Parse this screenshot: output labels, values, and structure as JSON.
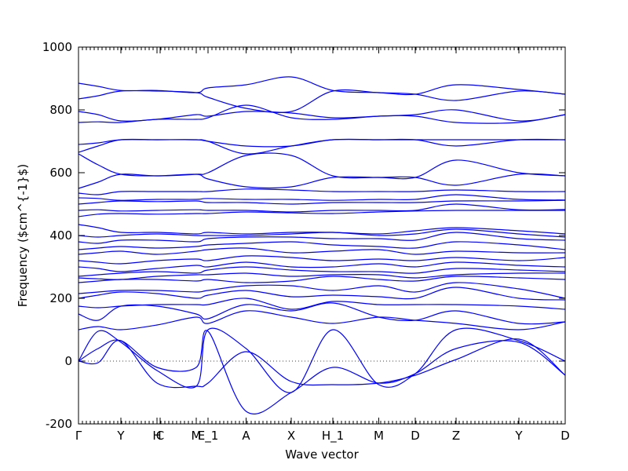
{
  "chart_data": {
    "type": "line",
    "xlabel": "Wave vector",
    "ylabel": "Frequency ($cm^{-1}$)",
    "ylim": [
      -200,
      1000
    ],
    "yticks": [
      -200,
      0,
      200,
      400,
      600,
      800,
      1000
    ],
    "xlim": [
      0,
      12.4
    ],
    "grid": false,
    "zero_line": "dotted",
    "color": "#0000ff",
    "high_symmetry_points": [
      {
        "label": "Γ",
        "x": 0.0
      },
      {
        "label": "Y",
        "x": 1.08
      },
      {
        "label": "H",
        "x": 2.0
      },
      {
        "label": "C",
        "x": 2.08
      },
      {
        "label": "M",
        "x": 3.0
      },
      {
        "label": "E_1",
        "x": 3.3
      },
      {
        "label": "A",
        "x": 4.27
      },
      {
        "label": "X",
        "x": 5.42
      },
      {
        "label": "H_1",
        "x": 6.48
      },
      {
        "label": "M",
        "x": 7.65
      },
      {
        "label": "D",
        "x": 8.58
      },
      {
        "label": "Z",
        "x": 9.62
      },
      {
        "label": "Y",
        "x": 11.22
      },
      {
        "label": "D",
        "x": 12.4
      }
    ],
    "series": [
      {
        "x": [
          0,
          0.5,
          1.08,
          2.0,
          3.0,
          3.3,
          4.27,
          5.42,
          6.48,
          7.65,
          8.58,
          9.62,
          11.22,
          12.4
        ],
        "values": [
          0,
          -5,
          65,
          -70,
          -80,
          -70,
          30,
          -65,
          -75,
          -70,
          -45,
          5,
          70,
          -45
        ]
      },
      {
        "x": [
          0,
          0.5,
          1.08,
          2.0,
          3.0,
          3.3,
          4.27,
          5.42,
          6.48,
          7.65,
          8.58,
          9.62,
          11.22,
          12.4
        ],
        "values": [
          0,
          40,
          65,
          -20,
          -20,
          95,
          -160,
          -100,
          -20,
          -70,
          -40,
          40,
          60,
          -45
        ]
      },
      {
        "x": [
          0,
          0.5,
          1.08,
          2.0,
          3.0,
          3.3,
          4.27,
          5.42,
          6.48,
          7.65,
          8.58,
          9.62,
          11.22,
          12.4
        ],
        "values": [
          0,
          95,
          60,
          -30,
          -80,
          100,
          40,
          -100,
          100,
          -75,
          -40,
          100,
          65,
          0
        ]
      },
      {
        "x": [
          0,
          0.5,
          1.08,
          2.0,
          3.0,
          3.3,
          4.27,
          5.42,
          6.48,
          7.65,
          8.58,
          9.62,
          11.22,
          12.4
        ],
        "values": [
          100,
          110,
          100,
          115,
          140,
          120,
          160,
          140,
          120,
          140,
          130,
          120,
          100,
          125
        ]
      },
      {
        "x": [
          0,
          0.5,
          1.08,
          2.0,
          3.0,
          3.3,
          4.27,
          5.42,
          6.48,
          7.65,
          8.58,
          9.62,
          11.22,
          12.4
        ],
        "values": [
          150,
          130,
          175,
          175,
          150,
          135,
          180,
          160,
          185,
          140,
          130,
          160,
          120,
          125
        ]
      },
      {
        "x": [
          0,
          0.5,
          1.08,
          2.0,
          3.0,
          3.3,
          4.27,
          5.42,
          6.48,
          7.65,
          8.58,
          9.62,
          11.22,
          12.4
        ],
        "values": [
          175,
          170,
          175,
          180,
          180,
          180,
          200,
          165,
          190,
          180,
          180,
          180,
          175,
          165
        ]
      },
      {
        "x": [
          0,
          0.5,
          1.08,
          2.0,
          3.0,
          3.3,
          4.27,
          5.42,
          6.48,
          7.65,
          8.58,
          9.62,
          11.22,
          12.4
        ],
        "values": [
          200,
          210,
          220,
          215,
          200,
          210,
          225,
          205,
          210,
          205,
          200,
          235,
          200,
          195
        ]
      },
      {
        "x": [
          0,
          0.5,
          1.08,
          2.0,
          3.0,
          3.3,
          4.27,
          5.42,
          6.48,
          7.65,
          8.58,
          9.62,
          11.22,
          12.4
        ],
        "values": [
          215,
          220,
          225,
          225,
          220,
          225,
          240,
          240,
          225,
          240,
          220,
          250,
          230,
          200
        ]
      },
      {
        "x": [
          0,
          0.5,
          1.08,
          2.0,
          3.0,
          3.3,
          4.27,
          5.42,
          6.48,
          7.65,
          8.58,
          9.62,
          11.22,
          12.4
        ],
        "values": [
          250,
          255,
          260,
          260,
          255,
          260,
          250,
          255,
          270,
          260,
          255,
          270,
          265,
          260
        ]
      },
      {
        "x": [
          0,
          0.5,
          1.08,
          2.0,
          3.0,
          3.3,
          4.27,
          5.42,
          6.48,
          7.65,
          8.58,
          9.62,
          11.22,
          12.4
        ],
        "values": [
          265,
          262,
          260,
          270,
          275,
          275,
          280,
          270,
          275,
          275,
          265,
          275,
          280,
          280
        ]
      },
      {
        "x": [
          0,
          0.5,
          1.08,
          2.0,
          3.0,
          3.3,
          4.27,
          5.42,
          6.48,
          7.65,
          8.58,
          9.62,
          11.22,
          12.4
        ],
        "values": [
          270,
          275,
          280,
          285,
          280,
          290,
          300,
          290,
          285,
          285,
          280,
          295,
          290,
          285
        ]
      },
      {
        "x": [
          0,
          0.5,
          1.08,
          2.0,
          3.0,
          3.3,
          4.27,
          5.42,
          6.48,
          7.65,
          8.58,
          9.62,
          11.22,
          12.4
        ],
        "values": [
          300,
          295,
          285,
          295,
          305,
          300,
          315,
          300,
          300,
          310,
          300,
          315,
          305,
          300
        ]
      },
      {
        "x": [
          0,
          0.5,
          1.08,
          2.0,
          3.0,
          3.3,
          4.27,
          5.42,
          6.48,
          7.65,
          8.58,
          9.62,
          11.22,
          12.4
        ],
        "values": [
          320,
          315,
          310,
          320,
          325,
          320,
          335,
          330,
          320,
          325,
          320,
          330,
          320,
          330
        ]
      },
      {
        "x": [
          0,
          0.5,
          1.08,
          2.0,
          3.0,
          3.3,
          4.27,
          5.42,
          6.48,
          7.65,
          8.58,
          9.62,
          11.22,
          12.4
        ],
        "values": [
          340,
          345,
          350,
          340,
          350,
          355,
          360,
          345,
          350,
          355,
          340,
          350,
          345,
          345
        ]
      },
      {
        "x": [
          0,
          0.5,
          1.08,
          2.0,
          3.0,
          3.3,
          4.27,
          5.42,
          6.48,
          7.65,
          8.58,
          9.62,
          11.22,
          12.4
        ],
        "values": [
          355,
          360,
          365,
          360,
          365,
          370,
          375,
          380,
          370,
          365,
          360,
          380,
          370,
          355
        ]
      },
      {
        "x": [
          0,
          0.5,
          1.08,
          2.0,
          3.0,
          3.3,
          4.27,
          5.42,
          6.48,
          7.65,
          8.58,
          9.62,
          11.22,
          12.4
        ],
        "values": [
          380,
          375,
          385,
          385,
          380,
          390,
          395,
          395,
          390,
          390,
          385,
          410,
          390,
          385
        ]
      },
      {
        "x": [
          0,
          0.5,
          1.08,
          2.0,
          3.0,
          3.3,
          4.27,
          5.42,
          6.48,
          7.65,
          8.58,
          9.62,
          11.22,
          12.4
        ],
        "values": [
          400,
          395,
          400,
          405,
          400,
          400,
          400,
          405,
          410,
          400,
          405,
          420,
          405,
          395
        ]
      },
      {
        "x": [
          0,
          0.5,
          1.08,
          2.0,
          3.0,
          3.3,
          4.27,
          5.42,
          6.48,
          7.65,
          8.58,
          9.62,
          11.22,
          12.4
        ],
        "values": [
          435,
          425,
          410,
          410,
          405,
          410,
          405,
          410,
          410,
          405,
          415,
          425,
          415,
          405
        ]
      },
      {
        "x": [
          0,
          0.5,
          1.08,
          2.0,
          3.0,
          3.3,
          4.27,
          5.42,
          6.48,
          7.65,
          8.58,
          9.62,
          11.22,
          12.4
        ],
        "values": [
          460,
          468,
          470,
          468,
          470,
          470,
          475,
          472,
          470,
          475,
          478,
          480,
          480,
          480
        ]
      },
      {
        "x": [
          0,
          0.5,
          1.08,
          2.0,
          3.0,
          3.3,
          4.27,
          5.42,
          6.48,
          7.65,
          8.58,
          9.62,
          11.22,
          12.4
        ],
        "values": [
          480,
          482,
          478,
          480,
          482,
          480,
          480,
          475,
          480,
          480,
          480,
          500,
          482,
          483
        ]
      },
      {
        "x": [
          0,
          0.5,
          1.08,
          2.0,
          3.0,
          3.3,
          4.27,
          5.42,
          6.48,
          7.65,
          8.58,
          9.62,
          11.22,
          12.4
        ],
        "values": [
          500,
          505,
          510,
          508,
          510,
          505,
          505,
          500,
          505,
          505,
          505,
          510,
          510,
          512
        ]
      },
      {
        "x": [
          0,
          0.5,
          1.08,
          2.0,
          3.0,
          3.3,
          4.27,
          5.42,
          6.48,
          7.65,
          8.58,
          9.62,
          11.22,
          12.4
        ],
        "values": [
          520,
          518,
          512,
          515,
          515,
          518,
          515,
          515,
          512,
          515,
          515,
          530,
          515,
          513
        ]
      },
      {
        "x": [
          0,
          0.5,
          1.08,
          2.0,
          3.0,
          3.3,
          4.27,
          5.42,
          6.48,
          7.65,
          8.58,
          9.62,
          11.22,
          12.4
        ],
        "values": [
          535,
          530,
          540,
          540,
          540,
          540,
          548,
          545,
          540,
          540,
          540,
          545,
          540,
          540
        ]
      },
      {
        "x": [
          0,
          0.5,
          1.08,
          2.0,
          3.0,
          3.3,
          4.27,
          5.42,
          6.48,
          7.65,
          8.58,
          9.62,
          11.22,
          12.4
        ],
        "values": [
          550,
          570,
          595,
          590,
          595,
          580,
          555,
          555,
          585,
          585,
          585,
          560,
          595,
          590
        ]
      },
      {
        "x": [
          0,
          0.5,
          1.08,
          2.0,
          3.0,
          3.3,
          4.27,
          5.42,
          6.48,
          7.65,
          8.58,
          9.62,
          11.22,
          12.4
        ],
        "values": [
          660,
          625,
          595,
          590,
          595,
          600,
          655,
          655,
          590,
          585,
          585,
          640,
          600,
          590
        ]
      },
      {
        "x": [
          0,
          0.5,
          1.08,
          2.0,
          3.0,
          3.3,
          4.27,
          5.42,
          6.48,
          7.65,
          8.58,
          9.62,
          11.22,
          12.4
        ],
        "values": [
          665,
          685,
          705,
          705,
          705,
          700,
          660,
          685,
          705,
          705,
          705,
          685,
          705,
          705
        ]
      },
      {
        "x": [
          0,
          0.5,
          1.08,
          2.0,
          3.0,
          3.3,
          4.27,
          5.42,
          6.48,
          7.65,
          8.58,
          9.62,
          11.22,
          12.4
        ],
        "values": [
          690,
          695,
          705,
          705,
          705,
          700,
          685,
          685,
          705,
          705,
          705,
          705,
          705,
          705
        ]
      },
      {
        "x": [
          0,
          0.5,
          1.08,
          2.0,
          3.0,
          3.3,
          4.27,
          5.42,
          6.48,
          7.65,
          8.58,
          9.62,
          11.22,
          12.4
        ],
        "values": [
          760,
          762,
          760,
          770,
          770,
          775,
          815,
          775,
          770,
          780,
          780,
          760,
          760,
          785
        ]
      },
      {
        "x": [
          0,
          0.5,
          1.08,
          2.0,
          3.0,
          3.3,
          4.27,
          5.42,
          6.48,
          7.65,
          8.58,
          9.62,
          11.22,
          12.4
        ],
        "values": [
          795,
          785,
          765,
          770,
          785,
          780,
          795,
          790,
          775,
          780,
          785,
          800,
          765,
          785
        ]
      },
      {
        "x": [
          0,
          0.5,
          1.08,
          2.0,
          3.0,
          3.3,
          4.27,
          5.42,
          6.48,
          7.65,
          8.58,
          9.62,
          11.22,
          12.4
        ],
        "values": [
          835,
          845,
          860,
          860,
          855,
          840,
          805,
          795,
          860,
          855,
          850,
          830,
          860,
          850
        ]
      },
      {
        "x": [
          0,
          0.5,
          1.08,
          2.0,
          3.0,
          3.3,
          4.27,
          5.42,
          6.48,
          7.65,
          8.58,
          9.62,
          11.22,
          12.4
        ],
        "values": [
          885,
          875,
          862,
          862,
          855,
          870,
          880,
          905,
          862,
          855,
          850,
          880,
          865,
          850
        ]
      }
    ]
  }
}
